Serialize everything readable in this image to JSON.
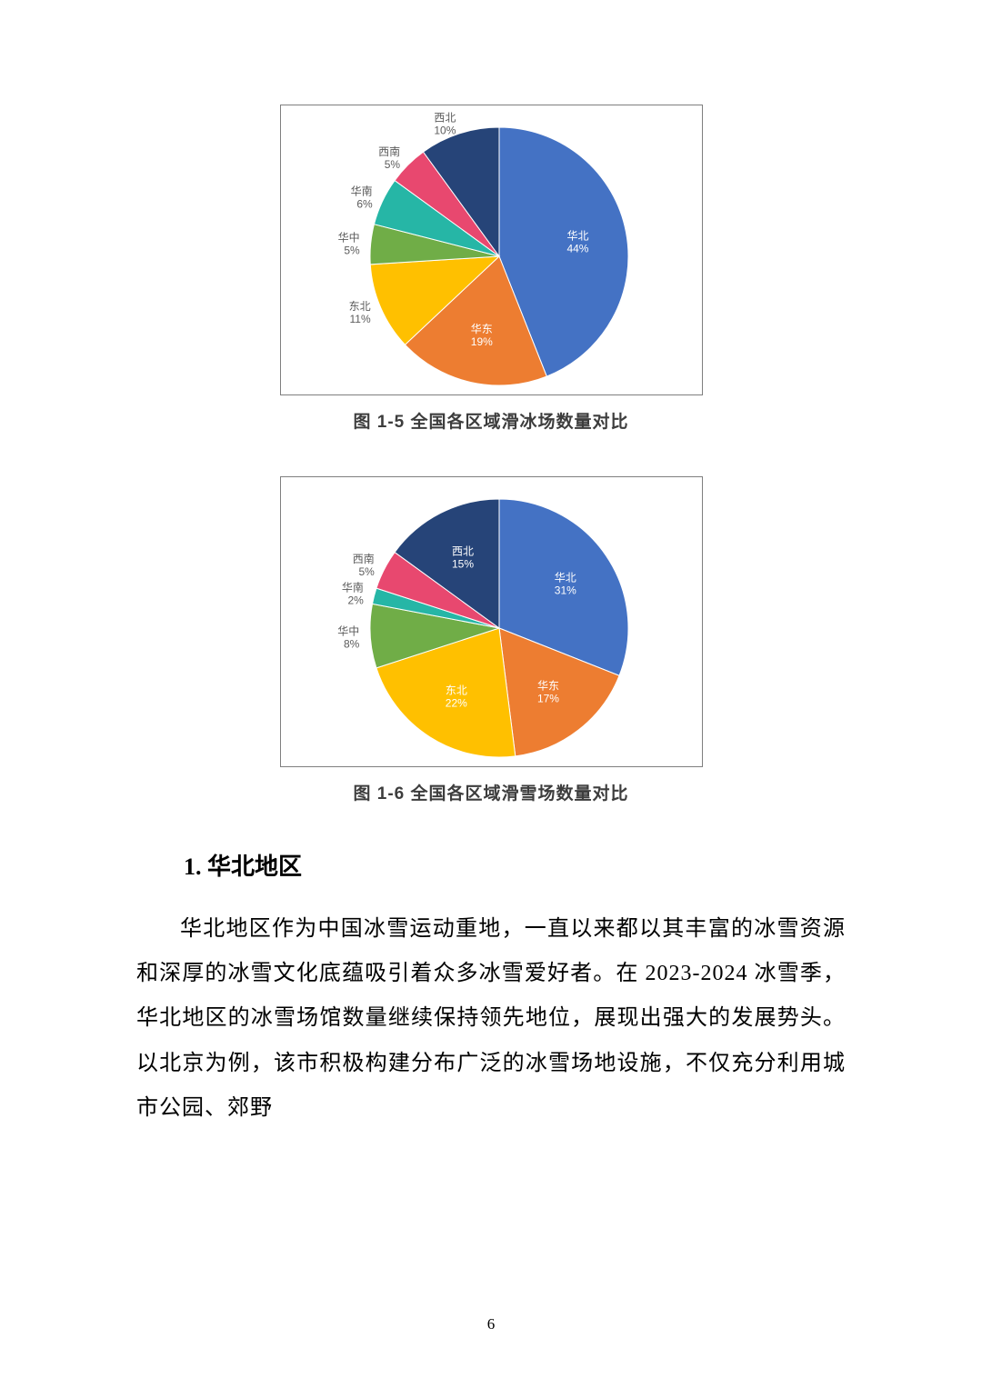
{
  "chart1": {
    "type": "pie",
    "caption": "图 1-5  全国各区域滑冰场数量对比",
    "background_color": "#ffffff",
    "border_color": "#7f7f7f",
    "label_color_inside": "#ffffff",
    "label_color_outside": "#5b5b5b",
    "label_fontsize": 12,
    "slices": [
      {
        "name": "华北",
        "value": 44,
        "color": "#4472c4",
        "label": "华北",
        "pct": "44%",
        "label_pos": "inside"
      },
      {
        "name": "华东",
        "value": 19,
        "color": "#ed7d31",
        "label": "华东",
        "pct": "19%",
        "label_pos": "inside"
      },
      {
        "name": "东北",
        "value": 11,
        "color": "#ffc000",
        "label": "东北",
        "pct": "11%",
        "label_pos": "outside"
      },
      {
        "name": "华中",
        "value": 5,
        "color": "#70ad47",
        "label": "华中",
        "pct": "5%",
        "label_pos": "outside"
      },
      {
        "name": "华南",
        "value": 6,
        "color": "#26b6a6",
        "label": "华南",
        "pct": "6%",
        "label_pos": "outside"
      },
      {
        "name": "西南",
        "value": 5,
        "color": "#e8486f",
        "label": "西南",
        "pct": "5%",
        "label_pos": "outside"
      },
      {
        "name": "西北",
        "value": 10,
        "color": "#264478",
        "label": "西北",
        "pct": "10%",
        "label_pos": "outside"
      }
    ]
  },
  "chart2": {
    "type": "pie",
    "caption": "图 1-6  全国各区域滑雪场数量对比",
    "background_color": "#ffffff",
    "border_color": "#7f7f7f",
    "label_color_inside": "#ffffff",
    "label_color_outside": "#5b5b5b",
    "label_fontsize": 12,
    "slices": [
      {
        "name": "华北",
        "value": 31,
        "color": "#4472c4",
        "label": "华北",
        "pct": "31%",
        "label_pos": "inside"
      },
      {
        "name": "华东",
        "value": 17,
        "color": "#ed7d31",
        "label": "华东",
        "pct": "17%",
        "label_pos": "inside"
      },
      {
        "name": "东北",
        "value": 22,
        "color": "#ffc000",
        "label": "东北",
        "pct": "22%",
        "label_pos": "inside"
      },
      {
        "name": "华中",
        "value": 8,
        "color": "#70ad47",
        "label": "华中",
        "pct": "8%",
        "label_pos": "outside"
      },
      {
        "name": "华南",
        "value": 2,
        "color": "#26b6a6",
        "label": "华南",
        "pct": "2%",
        "label_pos": "outside"
      },
      {
        "name": "西南",
        "value": 5,
        "color": "#e8486f",
        "label": "西南",
        "pct": "5%",
        "label_pos": "outside"
      },
      {
        "name": "西北",
        "value": 15,
        "color": "#264478",
        "label": "西北",
        "pct": "15%",
        "label_pos": "inside"
      }
    ]
  },
  "section": {
    "number": "1.",
    "title": "华北地区",
    "paragraph": "华北地区作为中国冰雪运动重地，一直以来都以其丰富的冰雪资源和深厚的冰雪文化底蕴吸引着众多冰雪爱好者。在 2023-2024 冰雪季，华北地区的冰雪场馆数量继续保持领先地位，展现出强大的发展势头。以北京为例，该市积极构建分布广泛的冰雪场地设施，不仅充分利用城市公园、郊野"
  },
  "page_number": "6"
}
